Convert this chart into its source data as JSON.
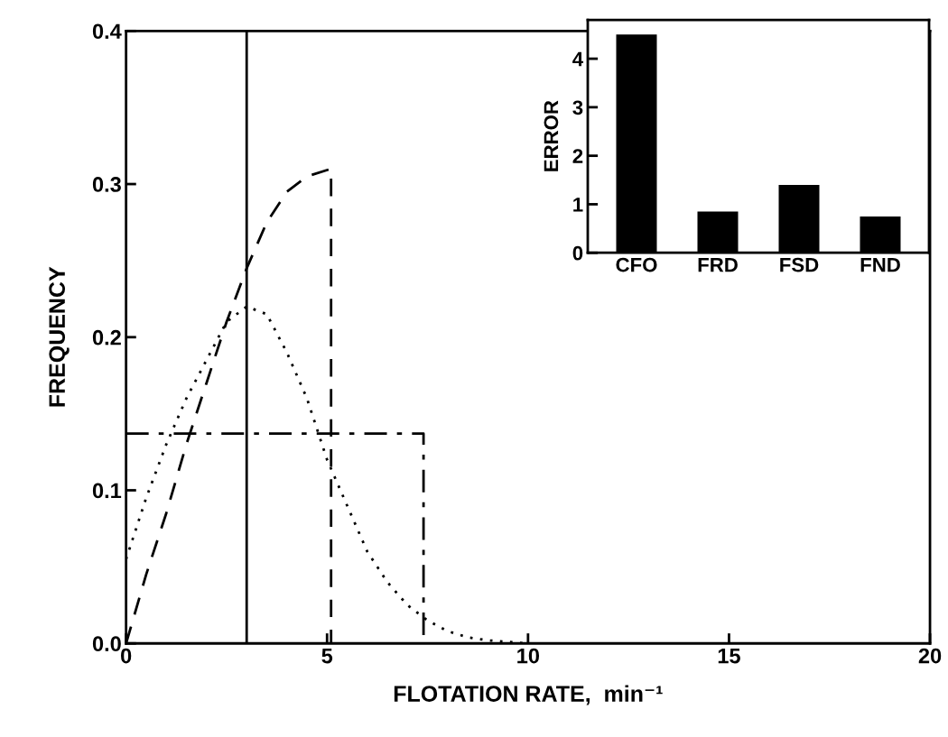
{
  "chart_data": [
    {
      "type": "line",
      "xlabel": "FLOTATION RATE,  min⁻¹",
      "ylabel": "FREQUENCY",
      "ref_lines": [
        {
          "axis": "x",
          "value": 3,
          "color": "#000000",
          "line_style": "solid"
        }
      ],
      "xlim": [
        0,
        20
      ],
      "ylim": [
        0,
        0.4
      ],
      "xticks": [
        0,
        5,
        10,
        15,
        20
      ],
      "yticks": [
        {
          "value": 0,
          "label": "0.0"
        },
        0.1,
        0.2,
        0.3,
        0.4
      ],
      "legend": false,
      "marker": "none",
      "series": [
        {
          "color": "#000000",
          "line_style": "dashed",
          "x": [
            0,
            0.5,
            1,
            1.5,
            2,
            2.5,
            3,
            3.5,
            4,
            4.5,
            5.1,
            5.1
          ],
          "values": [
            0,
            0.045,
            0.085,
            0.13,
            0.17,
            0.21,
            0.245,
            0.275,
            0.295,
            0.305,
            0.31,
            0
          ]
        },
        {
          "color": "#000000",
          "line_style": "dotted",
          "x": [
            0,
            0.5,
            1,
            1.5,
            2,
            2.5,
            3,
            3.5,
            4,
            4.5,
            5,
            5.5,
            6,
            6.5,
            7,
            7.5,
            8,
            8.5,
            9,
            10
          ],
          "values": [
            0.055,
            0.095,
            0.13,
            0.16,
            0.185,
            0.21,
            0.22,
            0.215,
            0.19,
            0.16,
            0.12,
            0.09,
            0.06,
            0.04,
            0.025,
            0.015,
            0.008,
            0.004,
            0.002,
            0
          ]
        },
        {
          "color": "#000000",
          "line_style": "dashdot",
          "x": [
            0,
            7.4,
            7.4
          ],
          "values": [
            0.137,
            0.137,
            0
          ]
        }
      ]
    },
    {
      "type": "bar",
      "ylabel": "ERROR",
      "categories": [
        "CFO",
        "FRD",
        "FSD",
        "FND"
      ],
      "values": [
        4.5,
        0.85,
        1.4,
        0.75
      ],
      "color": "#000000",
      "ylim": [
        0,
        4.8
      ],
      "yticks": [
        0,
        1,
        2,
        3,
        4
      ],
      "grid": false
    }
  ]
}
